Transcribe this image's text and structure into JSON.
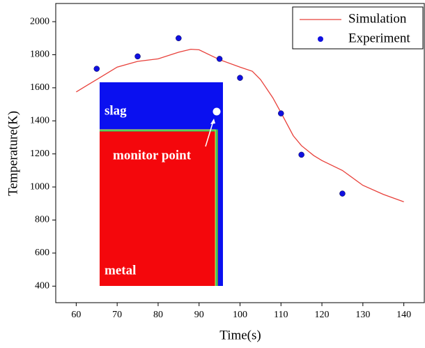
{
  "chart_data": {
    "type": "line_scatter",
    "xlabel": "Time(s)",
    "ylabel": "Temperature(K)",
    "xlim": [
      55,
      145
    ],
    "ylim": [
      300,
      2110
    ],
    "xticks": [
      60,
      70,
      80,
      90,
      100,
      110,
      120,
      130,
      140
    ],
    "yticks": [
      400,
      600,
      800,
      1000,
      1200,
      1400,
      1600,
      1800,
      2000
    ],
    "legend": "upper right",
    "series": [
      {
        "name": "Simulation",
        "kind": "line",
        "color": "#e8403a",
        "x": [
          60,
          65,
          70,
          75,
          80,
          85,
          88,
          90,
          95,
          100,
          103,
          105,
          108,
          110,
          113,
          115,
          118,
          120,
          125,
          130,
          135,
          140
        ],
        "values": [
          1575,
          1650,
          1725,
          1760,
          1775,
          1815,
          1833,
          1830,
          1770,
          1725,
          1700,
          1650,
          1540,
          1450,
          1310,
          1250,
          1190,
          1160,
          1100,
          1010,
          955,
          910
        ]
      },
      {
        "name": "Experiment",
        "kind": "scatter",
        "color": "#1010e0",
        "x": [
          65,
          75,
          85,
          95,
          100,
          110,
          115,
          125
        ],
        "values": [
          1715,
          1790,
          1900,
          1775,
          1660,
          1445,
          1195,
          960
        ]
      }
    ],
    "annotations": {
      "slag": "slag",
      "monitor": "monitor point",
      "metal": "metal"
    }
  }
}
